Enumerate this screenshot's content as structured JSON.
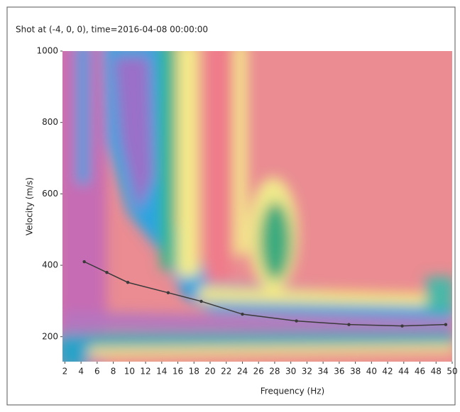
{
  "chart_data": {
    "type": "line",
    "title": "Shot at (-4, 0, 0), time=2016-04-08 00:00:00",
    "x_label": "Frequency (Hz)",
    "y_label": "Velocity (m/s)",
    "x": [
      4.4,
      7.2,
      9.8,
      14.8,
      18.9,
      24,
      30.7,
      37.2,
      43.8,
      49.2
    ],
    "series": [
      {
        "color": "#3a3a3a",
        "values": [
          410,
          380,
          352,
          323,
          299,
          263,
          244,
          234,
          230,
          234
        ]
      }
    ],
    "xlim": [
      1.7,
      50
    ],
    "xticks": [
      2,
      4,
      6,
      8,
      10,
      12,
      14,
      16,
      18,
      20,
      22,
      24,
      26,
      28,
      30,
      32,
      34,
      36,
      38,
      40,
      42,
      44,
      46,
      48,
      50
    ],
    "ylim": [
      130,
      1000
    ],
    "yticks": [
      200,
      400,
      600,
      800,
      1000
    ],
    "grid": false
  }
}
